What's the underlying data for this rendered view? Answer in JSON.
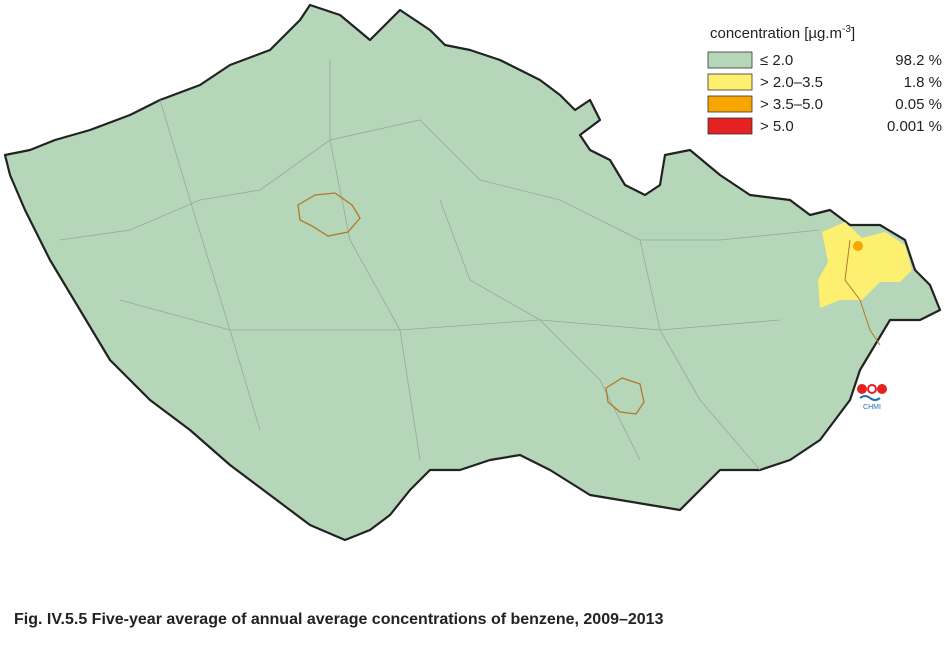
{
  "legend": {
    "title": "concentration [µg.m",
    "title_sup": "-3",
    "title_end": "]",
    "items": [
      {
        "label": "≤ 2.0",
        "share": "98.2 %",
        "color": "#b5d6b8"
      },
      {
        "label": "> 2.0–3.5",
        "share": "1.8 %",
        "color": "#fdf070"
      },
      {
        "label": "> 3.5–5.0",
        "share": "0.05 %",
        "color": "#f7a600"
      },
      {
        "label": "> 5.0",
        "share": "0.001 %",
        "color": "#e32221"
      }
    ]
  },
  "logo": {
    "text": "CHMI"
  },
  "caption": "Fig. IV.5.5  Five-year average of annual average concentrations of benzene, 2009–2013"
}
